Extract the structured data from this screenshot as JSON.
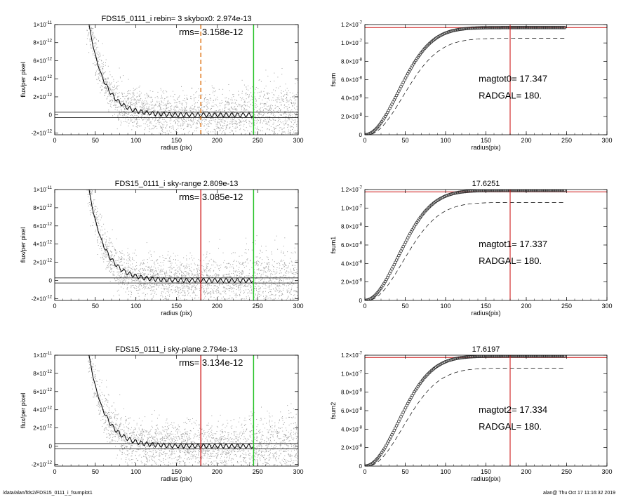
{
  "footer": {
    "path": "/data/alan/fds2/FDS15_0111_i_fsumplot1",
    "timestamp": "alan@  Thu Oct 17 11:16:32 2019"
  },
  "colors": {
    "axis": "#000000",
    "scatter": "#a0a0a0",
    "profile": "#000000",
    "skybox_marker": "#e07a1f",
    "radgal_marker": "#d32f2f",
    "limit_marker": "#22c122",
    "fsum_ref_line": "#d32f2f",
    "fsum_markers": "#333333"
  },
  "chart_data": [
    {
      "type": "scatter",
      "id": "left1",
      "title": "FDS15_0111_i rebin= 3    skybox0:  2.974e-13",
      "annotation": "rms= 3.158e-12",
      "xlabel": "radius (pix)",
      "ylabel": "flux/per pixel",
      "xlim": [
        0,
        300
      ],
      "ylim": [
        -2.2e-12,
        1e-11
      ],
      "xticks": [
        0,
        50,
        100,
        150,
        200,
        250,
        300
      ],
      "yticks": [
        -2e-12,
        0,
        2e-12,
        4e-12,
        6e-12,
        8e-12,
        1e-11
      ],
      "ytick_labels": [
        [
          "-2",
          "-12"
        ],
        [
          "0",
          ""
        ],
        [
          "2",
          "-12"
        ],
        [
          "4",
          "-12"
        ],
        [
          "6",
          "-12"
        ],
        [
          "8",
          "-12"
        ],
        [
          "1",
          "-11"
        ]
      ],
      "sky_lines": [
        2.974e-13,
        -2.974e-13
      ],
      "vlines": [
        {
          "x": 180,
          "color": "skybox_marker",
          "dash": true
        },
        {
          "x": 245,
          "color": "limit_marker",
          "dash": false
        }
      ]
    },
    {
      "type": "line",
      "id": "right1",
      "title": "",
      "annotation_lines": [
        "magtot0=  17.347",
        "RADGAL=    180."
      ],
      "xlabel": "radius(pix)",
      "ylabel": "fsum",
      "xlim": [
        0,
        300
      ],
      "ylim": [
        0,
        1.2e-07
      ],
      "xticks": [
        0,
        50,
        100,
        150,
        200,
        250,
        300
      ],
      "yticks": [
        0,
        2e-08,
        4e-08,
        6e-08,
        8e-08,
        1e-07,
        1.2e-07
      ],
      "ytick_labels": [
        [
          "0",
          ""
        ],
        [
          "2.0",
          "-8"
        ],
        [
          "4.0",
          "-8"
        ],
        [
          "6.0",
          "-8"
        ],
        [
          "8.0",
          "-8"
        ],
        [
          "1.0",
          "-7"
        ],
        [
          "1.2",
          "-7"
        ]
      ],
      "ref_y": 1.167e-07,
      "radgal": 180,
      "plateau": 1.167e-07,
      "dashed_plateau": 1.05e-07
    },
    {
      "type": "scatter",
      "id": "left2",
      "title": "FDS15_0111_i sky-range  2.809e-13",
      "annotation": "rms= 3.085e-12",
      "xlabel": "radius (pix)",
      "ylabel": "flux/per pixel",
      "xlim": [
        0,
        300
      ],
      "ylim": [
        -2.2e-12,
        1e-11
      ],
      "xticks": [
        0,
        50,
        100,
        150,
        200,
        250,
        300
      ],
      "yticks": [
        -2e-12,
        0,
        2e-12,
        4e-12,
        6e-12,
        8e-12,
        1e-11
      ],
      "ytick_labels": [
        [
          "-2",
          "-12"
        ],
        [
          "0",
          ""
        ],
        [
          "2",
          "-12"
        ],
        [
          "4",
          "-12"
        ],
        [
          "6",
          "-12"
        ],
        [
          "8",
          "-12"
        ],
        [
          "1",
          "-11"
        ]
      ],
      "sky_lines": [
        2.809e-13,
        -2.809e-13
      ],
      "vlines": [
        {
          "x": 180,
          "color": "radgal_marker",
          "dash": false
        },
        {
          "x": 245,
          "color": "limit_marker",
          "dash": false
        }
      ]
    },
    {
      "type": "line",
      "id": "right2",
      "title": "17.6251",
      "annotation_lines": [
        "magtot1=  17.337",
        "RADGAL=    180."
      ],
      "xlabel": "radius(pix)",
      "ylabel": "fsum1",
      "xlim": [
        0,
        300
      ],
      "ylim": [
        0,
        1.2e-07
      ],
      "xticks": [
        0,
        50,
        100,
        150,
        200,
        250,
        300
      ],
      "yticks": [
        0,
        2e-08,
        4e-08,
        6e-08,
        8e-08,
        1e-07,
        1.2e-07
      ],
      "ytick_labels": [
        [
          "0",
          ""
        ],
        [
          "2.0",
          "-8"
        ],
        [
          "4.0",
          "-8"
        ],
        [
          "6.0",
          "-8"
        ],
        [
          "8.0",
          "-8"
        ],
        [
          "1.0",
          "-7"
        ],
        [
          "1.2",
          "-7"
        ]
      ],
      "ref_y": 1.175e-07,
      "radgal": 180,
      "plateau": 1.19e-07,
      "dashed_plateau": 1.06e-07
    },
    {
      "type": "scatter",
      "id": "left3",
      "title": "FDS15_0111_i sky-plane  2.794e-13",
      "annotation": "rms= 3.134e-12",
      "xlabel": "radius (pix)",
      "ylabel": "flux/per pixel",
      "xlim": [
        0,
        300
      ],
      "ylim": [
        -2.2e-12,
        1e-11
      ],
      "xticks": [
        0,
        50,
        100,
        150,
        200,
        250,
        300
      ],
      "yticks": [
        -2e-12,
        0,
        2e-12,
        4e-12,
        6e-12,
        8e-12,
        1e-11
      ],
      "ytick_labels": [
        [
          "-2",
          "-12"
        ],
        [
          "0",
          ""
        ],
        [
          "2",
          "-12"
        ],
        [
          "4",
          "-12"
        ],
        [
          "6",
          "-12"
        ],
        [
          "8",
          "-12"
        ],
        [
          "1",
          "-11"
        ]
      ],
      "sky_lines": [
        2.794e-13,
        -2.794e-13
      ],
      "vlines": [
        {
          "x": 180,
          "color": "radgal_marker",
          "dash": false
        },
        {
          "x": 245,
          "color": "limit_marker",
          "dash": false
        }
      ]
    },
    {
      "type": "line",
      "id": "right3",
      "title": "17.6197",
      "annotation_lines": [
        "magtot2=  17.334",
        "RADGAL=    180."
      ],
      "xlabel": "radius(pix)",
      "ylabel": "fsum2",
      "xlim": [
        0,
        300
      ],
      "ylim": [
        0,
        1.2e-07
      ],
      "xticks": [
        0,
        50,
        100,
        150,
        200,
        250,
        300
      ],
      "yticks": [
        0,
        2e-08,
        4e-08,
        6e-08,
        8e-08,
        1e-07,
        1.2e-07
      ],
      "ytick_labels": [
        [
          "0",
          ""
        ],
        [
          "2.0",
          "-8"
        ],
        [
          "4.0",
          "-8"
        ],
        [
          "6.0",
          "-8"
        ],
        [
          "8.0",
          "-8"
        ],
        [
          "1.0",
          "-7"
        ],
        [
          "1.2",
          "-7"
        ]
      ],
      "ref_y": 1.175e-07,
      "radgal": 180,
      "plateau": 1.19e-07,
      "dashed_plateau": 1.06e-07
    }
  ]
}
